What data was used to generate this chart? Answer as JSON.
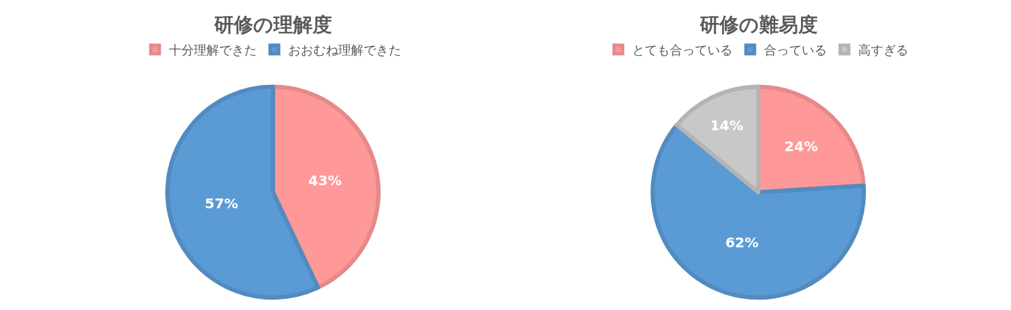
{
  "chart_data": [
    {
      "type": "pie",
      "title": "研修の理解度",
      "categories": [
        "十分理解できた",
        "おおむね理解できた"
      ],
      "values": [
        43,
        57
      ],
      "value_labels": [
        "43%",
        "57%"
      ],
      "colors": [
        "#ff9999",
        "#5b9bd5"
      ],
      "legend": "top"
    },
    {
      "type": "pie",
      "title": "研修の難易度",
      "categories": [
        "とても合っている",
        "合っている",
        "高すぎる"
      ],
      "values": [
        24,
        62,
        14
      ],
      "value_labels": [
        "24%",
        "62%",
        "14%"
      ],
      "colors": [
        "#ff9999",
        "#5b9bd5",
        "#c8c8c8"
      ],
      "legend": "top"
    }
  ]
}
